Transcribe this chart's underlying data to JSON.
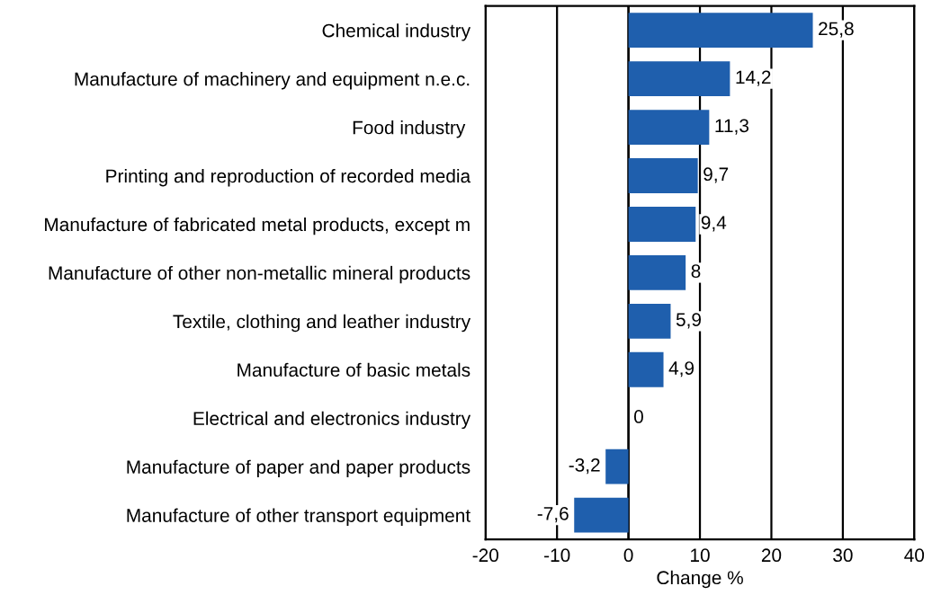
{
  "chart_data": {
    "type": "bar",
    "orientation": "horizontal",
    "xlabel": "Change %",
    "categories": [
      "Chemical industry",
      "Manufacture of machinery and equipment n.e.c.",
      "Food industry ",
      "Printing and reproduction of recorded media",
      "Manufacture of fabricated metal products, except m",
      "Manufacture of other non-metallic mineral products",
      "Textile, clothing and leather industry",
      "Manufacture of basic metals",
      "Electrical and electronics industry",
      "Manufacture of paper and paper products",
      "Manufacture of other transport equipment"
    ],
    "values": [
      25.8,
      14.2,
      11.3,
      9.7,
      9.4,
      8,
      5.9,
      4.9,
      0,
      -3.2,
      -7.6
    ],
    "value_labels": [
      "25,8",
      "14,2",
      "11,3",
      "9,7",
      "9,4",
      "8",
      "5,9",
      "4,9",
      "0",
      "-3,2",
      "-7,6"
    ],
    "color": "#1f5fad",
    "xlim": [
      -20,
      40
    ],
    "xticks": [
      -20,
      -10,
      0,
      10,
      20,
      30,
      40
    ],
    "grid": "x"
  }
}
